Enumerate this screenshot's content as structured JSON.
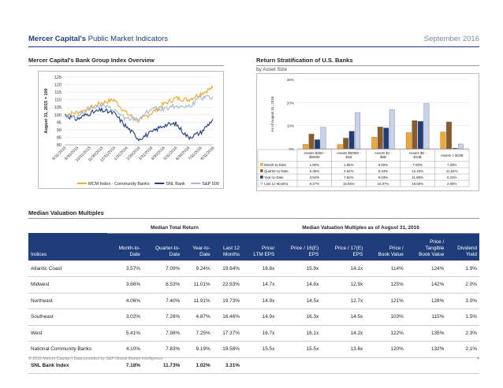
{
  "header": {
    "title_bold": "Mercer Capital's",
    "title_rest": " Public Market Indicators",
    "date": "September 2016"
  },
  "left_section": {
    "title": "Mercer Capital's Bank Group Index Overview"
  },
  "right_section": {
    "title": "Return Stratification of U.S. Banks",
    "subtitle": "by Asset Size"
  },
  "chart_data": [
    {
      "type": "line",
      "ylabel": "August 31, 2015 = 100",
      "ylim": [
        80,
        125
      ],
      "yticks": [
        "125",
        "120",
        "115",
        "110",
        "105",
        "100",
        "95",
        "90",
        "85",
        "80"
      ],
      "x": [
        "8/31/2015",
        "9/30/2015",
        "10/31/2015",
        "11/30/2015",
        "12/31/2015",
        "1/31/2016",
        "2/29/2016",
        "3/31/2016",
        "4/30/2016",
        "5/31/2016",
        "6/30/2016",
        "7/31/2016",
        "8/31/2016"
      ],
      "series": [
        {
          "name": "MCM Index - Community Banks",
          "color": "#f0a830",
          "values": [
            100,
            101.5,
            104,
            108,
            110,
            101,
            96,
            101,
            107,
            111,
            110,
            114,
            118
          ]
        },
        {
          "name": "SNL Bank",
          "color": "#1f3d7a",
          "values": [
            100,
            97,
            101,
            103,
            101,
            92,
            84,
            88,
            93,
            94,
            85,
            88,
            97
          ]
        },
        {
          "name": "S&P 500",
          "color": "#a6b7d6",
          "values": [
            100,
            98,
            105,
            106,
            103,
            97,
            97,
            104,
            104,
            106,
            105,
            111,
            112
          ]
        }
      ],
      "legend": "bottom"
    },
    {
      "type": "bar",
      "ylabel": "As of August 31, 2016",
      "ylim": [
        0,
        30
      ],
      "yticks": [
        "30%",
        "20%",
        "10%",
        "0%"
      ],
      "categories": [
        "Assets $250 - $500M",
        "Assets $500M - $1B",
        "Assets $1 - $5B",
        "Assets $5 - $10B",
        "Assets > $10B"
      ],
      "series": [
        {
          "name": "Month-to-Date",
          "color": "#f0a830",
          "values": [
            1.9,
            1.85,
            5.06,
            7.0,
            7.29
          ],
          "labels": [
            "1.90%",
            "1.85%",
            "5.06%",
            "7.00%",
            "7.29%"
          ]
        },
        {
          "name": "Quarter-to-Date",
          "color": "#8b5a2b",
          "values": [
            6.36,
            4.62,
            9.44,
            12.19,
            11.62
          ],
          "labels": [
            "6.36%",
            "4.62%",
            "9.44%",
            "12.19%",
            "11.62%"
          ]
        },
        {
          "name": "Year-to-Date",
          "color": "#1f3d7a",
          "values": [
            3.94,
            7.62,
            9.03,
            11.88,
            0.22
          ],
          "labels": [
            "3.94%",
            "7.62%",
            "9.03%",
            "11.88%",
            "0.22%"
          ]
        },
        {
          "name": "Last 12 Months",
          "color": "#c8d3ea",
          "values": [
            9.27,
            15.66,
            16.97,
            19.59,
            2.06
          ],
          "labels": [
            "9.27%",
            "15.66%",
            "16.97%",
            "19.59%",
            "2.06%"
          ]
        }
      ]
    }
  ],
  "valuation": {
    "title": "Median Valuation Multiples",
    "group_return": "Median Total Return",
    "group_multiples": "Median Valuation Multiples as of August 31, 2016",
    "headers": [
      "Indices",
      "Month-to-\nDate",
      "Quarter-to-\nDate",
      "Year-to-\nDate",
      "Last 12\nMonths",
      "Price/\nLTM EPS",
      "Price / 16(E)\nEPS",
      "Price / 17(E)\nEPS",
      "Price /\nBook Value",
      "Price /\nTangible\nBook Value",
      "Dividend\nYield"
    ],
    "rows": [
      [
        "Atlantic Coast",
        "3.57%",
        "7.09%",
        "9.24%",
        "19.64%",
        "16.8x",
        "15.9x",
        "14.1x",
        "114%",
        "124%",
        "1.9%"
      ],
      [
        "Midwest",
        "3.66%",
        "8.53%",
        "11.01%",
        "22.93%",
        "14.7x",
        "14.8x",
        "12.9x",
        "125%",
        "142%",
        "2.0%"
      ],
      [
        "Northeast",
        "4.06%",
        "7.40%",
        "11.91%",
        "19.73%",
        "14.9x",
        "14.5x",
        "12.7x",
        "121%",
        "128%",
        "3.0%"
      ],
      [
        "Southeast",
        "3.02%",
        "7.26%",
        "4.87%",
        "16.46%",
        "14.9x",
        "16.3x",
        "14.5x",
        "103%",
        "115%",
        "1.5%"
      ],
      [
        "West",
        "5.41%",
        "7.98%",
        "7.25%",
        "17.37%",
        "16.7x",
        "16.1x",
        "14.2x",
        "122%",
        "135%",
        "2.3%"
      ],
      [
        "National Community Banks",
        "4.10%",
        "7.83%",
        "9.19%",
        "19.58%",
        "15.5x",
        "15.5x",
        "13.6x",
        "120%",
        "132%",
        "2.1%"
      ]
    ],
    "total": [
      "SNL Bank Index",
      "7.18%",
      "11.73%",
      "1.02%",
      "3.31%",
      "",
      "",
      "",
      "",
      "",
      ""
    ]
  },
  "footer": {
    "text": "© 2016 Mercer Capital // Data provided by S&P Global Market Intelligence",
    "page": "4"
  }
}
